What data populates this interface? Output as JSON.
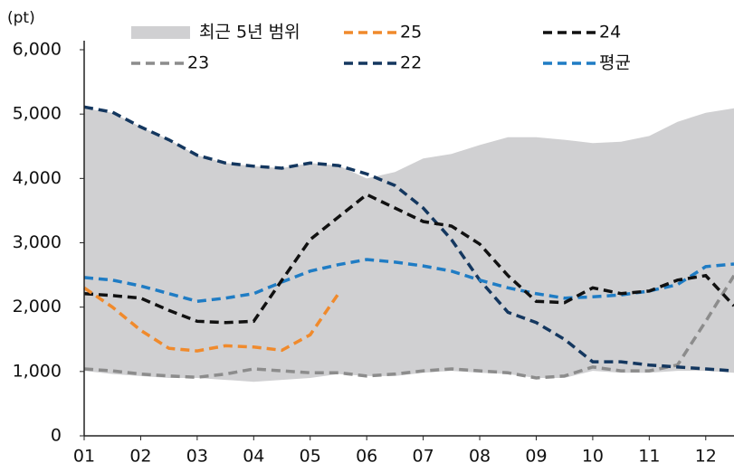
{
  "chart_data": {
    "type": "line",
    "y_label": "(pt)",
    "x": [
      1,
      1.5,
      2,
      2.5,
      3,
      3.5,
      4,
      4.5,
      5,
      5.5,
      6,
      6.5,
      7,
      7.5,
      8,
      8.5,
      9,
      9.5,
      10,
      10.5,
      11,
      11.5,
      12,
      12.5
    ],
    "xlim": [
      1,
      12.5
    ],
    "xticks": [
      {
        "value": 1,
        "label": "01"
      },
      {
        "value": 2,
        "label": "02"
      },
      {
        "value": 3,
        "label": "03"
      },
      {
        "value": 4,
        "label": "04"
      },
      {
        "value": 5,
        "label": "05"
      },
      {
        "value": 6,
        "label": "06"
      },
      {
        "value": 7,
        "label": "07"
      },
      {
        "value": 8,
        "label": "08"
      },
      {
        "value": 9,
        "label": "09"
      },
      {
        "value": 10,
        "label": "10"
      },
      {
        "value": 11,
        "label": "11"
      },
      {
        "value": 12,
        "label": "12"
      }
    ],
    "ylim": [
      0,
      6000
    ],
    "yticks": [
      0,
      {
        "value": 1000,
        "label": "1,000"
      },
      {
        "value": 2000,
        "label": "2,000"
      },
      {
        "value": 3000,
        "label": "3,000"
      },
      {
        "value": 4000,
        "label": "4,000"
      },
      {
        "value": 5000,
        "label": "5,000"
      },
      {
        "value": 6000,
        "label": "6,000"
      }
    ],
    "grid": false,
    "range": {
      "name": "최근 5년 범위",
      "color": "#d0d0d2",
      "upper": [
        5090,
        5020,
        4800,
        4600,
        4360,
        4240,
        4190,
        4160,
        4240,
        4200,
        4000,
        4100,
        4310,
        4380,
        4520,
        4640,
        4640,
        4600,
        4550,
        4570,
        4660,
        4880,
        5020,
        5090
      ],
      "lower": [
        1010,
        960,
        930,
        900,
        900,
        870,
        840,
        870,
        900,
        960,
        930,
        930,
        980,
        1010,
        980,
        960,
        900,
        900,
        1010,
        980,
        980,
        1010,
        1010,
        980
      ]
    },
    "series": [
      {
        "name": "25",
        "color": "#f08a2c",
        "values": [
          2300,
          2000,
          1640,
          1360,
          1320,
          1400,
          1380,
          1330,
          1570,
          2210,
          null,
          null,
          null,
          null,
          null,
          null,
          null,
          null,
          null,
          null,
          null,
          null,
          null,
          null
        ]
      },
      {
        "name": "24",
        "color": "#111111",
        "values": [
          2210,
          2180,
          2140,
          1950,
          1780,
          1760,
          1780,
          2420,
          3050,
          3400,
          3750,
          3540,
          3330,
          3260,
          2980,
          2490,
          2090,
          2070,
          2300,
          2210,
          2250,
          2420,
          2490,
          2020
        ]
      },
      {
        "name": "23",
        "color": "#8c8c8c",
        "values": [
          1040,
          1010,
          960,
          930,
          910,
          960,
          1040,
          1010,
          980,
          980,
          930,
          960,
          1010,
          1040,
          1010,
          980,
          900,
          930,
          1070,
          1010,
          1010,
          1100,
          1780,
          2490
        ]
      },
      {
        "name": "22",
        "color": "#14375f",
        "values": [
          5110,
          5030,
          4800,
          4600,
          4360,
          4240,
          4190,
          4160,
          4240,
          4200,
          4070,
          3890,
          3540,
          3050,
          2420,
          1920,
          1760,
          1500,
          1150,
          1150,
          1100,
          1070,
          1040,
          1010
        ]
      },
      {
        "name": "평균",
        "color": "#1f7cc4",
        "values": [
          2460,
          2420,
          2330,
          2210,
          2090,
          2140,
          2210,
          2390,
          2560,
          2660,
          2740,
          2700,
          2640,
          2560,
          2420,
          2300,
          2210,
          2140,
          2160,
          2190,
          2250,
          2350,
          2630,
          2670
        ]
      }
    ]
  }
}
